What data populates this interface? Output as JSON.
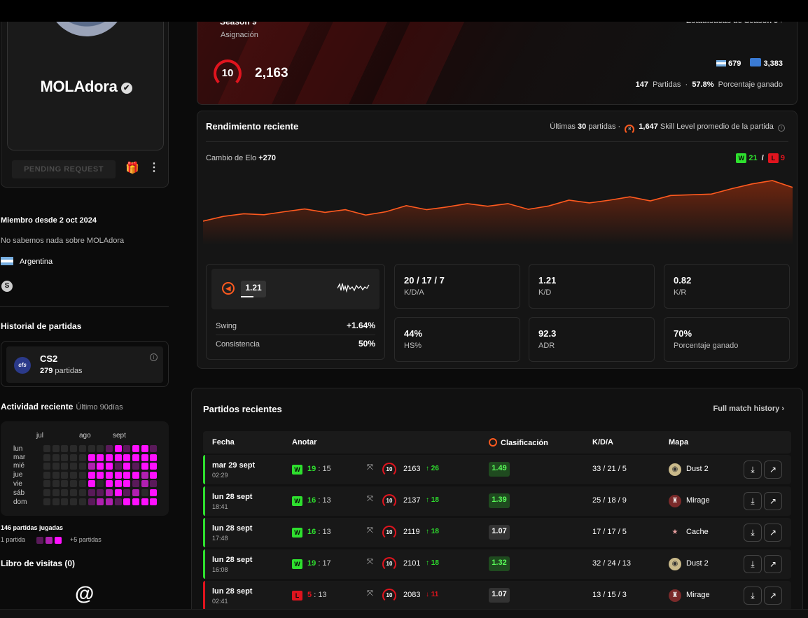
{
  "profile": {
    "username": "MOLAdora",
    "pending_label": "PENDING REQUEST",
    "member_since": "Miembro desde 2 oct 2024",
    "about": "No sabemos nada sobre MOLAdora",
    "country": "Argentina"
  },
  "history": {
    "title": "Historial de partidas",
    "game": "CS2",
    "count": "279",
    "count_label": "partidas"
  },
  "activity": {
    "title": "Actividad reciente",
    "range": "Último 90días",
    "months": [
      "jul",
      "ago",
      "sept"
    ],
    "days": [
      "lun",
      "mar",
      "mié",
      "jue",
      "vie",
      "sáb",
      "dom"
    ],
    "played": "146 partidas jugadas",
    "legend_min": "1 partida",
    "legend_max": "+5 partidas",
    "grid": [
      [
        0,
        0,
        0,
        0,
        0,
        0,
        0,
        1,
        3,
        1,
        3,
        3,
        1
      ],
      [
        0,
        0,
        0,
        0,
        0,
        3,
        3,
        3,
        3,
        3,
        3,
        3,
        3
      ],
      [
        0,
        0,
        0,
        0,
        0,
        2,
        3,
        3,
        1,
        3,
        1,
        3,
        3
      ],
      [
        0,
        0,
        0,
        0,
        0,
        3,
        3,
        3,
        3,
        3,
        3,
        2,
        3
      ],
      [
        0,
        0,
        0,
        0,
        0,
        3,
        0,
        3,
        3,
        3,
        1,
        2,
        1
      ],
      [
        0,
        0,
        0,
        0,
        0,
        1,
        1,
        2,
        3,
        1,
        2,
        0,
        3
      ],
      [
        0,
        0,
        0,
        0,
        0,
        1,
        2,
        2,
        1,
        3,
        3,
        3,
        3
      ]
    ]
  },
  "guestbook": {
    "title": "Libro de visitas (0)"
  },
  "season": {
    "title": "Season 9",
    "subtitle": "Asignación",
    "link": "Estadísticas de Season 9",
    "level": "10",
    "elo": "2,163",
    "country_rank": "679",
    "region_rank": "3,383",
    "matches_value": "147",
    "matches_label": "Partidas",
    "winrate_value": "57.8%",
    "winrate_label": "Porcentaje ganado"
  },
  "performance": {
    "title": "Rendimiento reciente",
    "last_label": "Últimas",
    "last_count": "30",
    "last_unit": "partidas",
    "skill_level_icon": "8",
    "skill_value": "1,647",
    "skill_label": "Skill Level promedio de la partida",
    "elo_change_label": "Cambio de Elo",
    "elo_change_value": "+270",
    "wins_badge": "W",
    "wins": "21",
    "losses_badge": "L",
    "losses": "9",
    "rating": "1.21",
    "swing_label": "Swing",
    "swing_value": "+1.64%",
    "consistency_label": "Consistencia",
    "consistency_value": "50%",
    "stats": [
      {
        "value": "20 / 17 / 7",
        "label": "K/D/A"
      },
      {
        "value": "1.21",
        "label": "K/D"
      },
      {
        "value": "0.82",
        "label": "K/R"
      },
      {
        "value": "44%",
        "label": "HS%"
      },
      {
        "value": "92.3",
        "label": "ADR"
      },
      {
        "value": "70%",
        "label": "Porcentaje ganado"
      }
    ]
  },
  "chart_data": {
    "type": "area",
    "title": "",
    "xlabel": "",
    "ylabel": "",
    "x": [
      1,
      2,
      3,
      4,
      5,
      6,
      7,
      8,
      9,
      10,
      11,
      12,
      13,
      14,
      15,
      16,
      17,
      18,
      19,
      20,
      21,
      22,
      23,
      24,
      25,
      26,
      27,
      28,
      29,
      30
    ],
    "values": [
      0,
      14,
      22,
      19,
      28,
      36,
      26,
      34,
      18,
      28,
      46,
      34,
      42,
      52,
      44,
      52,
      35,
      45,
      62,
      54,
      62,
      72,
      60,
      76,
      78,
      80,
      96,
      110,
      120,
      100
    ]
  },
  "matches": {
    "title": "Partidos recientes",
    "link": "Full match history",
    "headers": {
      "date": "Fecha",
      "score": "Anotar",
      "rating": "Clasificación",
      "kda": "K/D/A",
      "map": "Mapa"
    },
    "rows": [
      {
        "date": "mar 29 sept",
        "time": "02:29",
        "result": "W",
        "own": "19",
        "opp": "15",
        "level": "10",
        "elo": "2163",
        "delta": "26",
        "rating": "1.49",
        "kda": "33 / 21 / 5",
        "map": "Dust 2"
      },
      {
        "date": "lun 28 sept",
        "time": "18:41",
        "result": "W",
        "own": "16",
        "opp": "13",
        "level": "10",
        "elo": "2137",
        "delta": "18",
        "rating": "1.39",
        "kda": "25 / 18 / 9",
        "map": "Mirage"
      },
      {
        "date": "lun 28 sept",
        "time": "17:48",
        "result": "W",
        "own": "16",
        "opp": "13",
        "level": "10",
        "elo": "2119",
        "delta": "18",
        "rating": "1.07",
        "kda": "17 / 17 / 5",
        "map": "Cache"
      },
      {
        "date": "lun 28 sept",
        "time": "16:08",
        "result": "W",
        "own": "19",
        "opp": "17",
        "level": "10",
        "elo": "2101",
        "delta": "18",
        "rating": "1.32",
        "kda": "32 / 24 / 13",
        "map": "Dust 2"
      },
      {
        "date": "lun 28 sept",
        "time": "02:41",
        "result": "L",
        "own": "5",
        "opp": "13",
        "level": "10",
        "elo": "2083",
        "delta": "11",
        "rating": "1.07",
        "kda": "13 / 15 / 3",
        "map": "Mirage"
      }
    ]
  },
  "colors": {
    "accent": "#ff5a1f",
    "win": "#2ee02e",
    "loss": "#e0141e",
    "heat": [
      "#2a2a2a",
      "#5a1a5a",
      "#b020b0",
      "#ff10ff"
    ]
  }
}
